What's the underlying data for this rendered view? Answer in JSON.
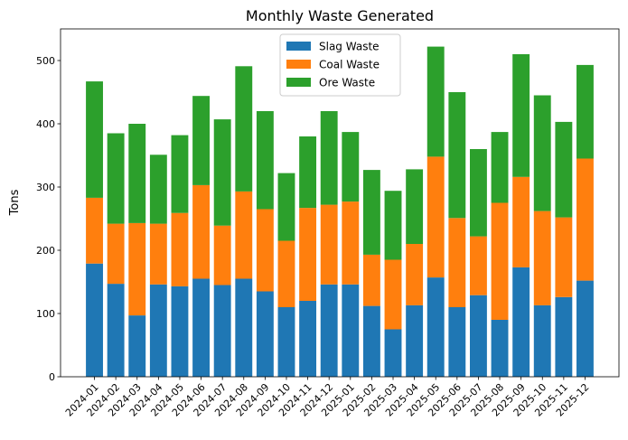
{
  "chart_data": {
    "type": "bar",
    "stacked": true,
    "title": "Monthly Waste Generated",
    "xlabel": "",
    "ylabel": "Tons",
    "ylim": [
      0,
      550
    ],
    "yticks": [
      0,
      100,
      200,
      300,
      400,
      500
    ],
    "legend_position": "top-center",
    "grid": false,
    "categories": [
      "2024-01",
      "2024-02",
      "2024-03",
      "2024-04",
      "2024-05",
      "2024-06",
      "2024-07",
      "2024-08",
      "2024-09",
      "2024-10",
      "2024-11",
      "2024-12",
      "2025-01",
      "2025-02",
      "2025-03",
      "2025-04",
      "2025-05",
      "2025-06",
      "2025-07",
      "2025-08",
      "2025-09",
      "2025-10",
      "2025-11",
      "2025-12"
    ],
    "series": [
      {
        "name": "Slag Waste",
        "color": "#1f77b4",
        "values": [
          179,
          147,
          97,
          146,
          143,
          155,
          145,
          155,
          135,
          110,
          120,
          146,
          146,
          112,
          75,
          113,
          157,
          110,
          129,
          90,
          173,
          113,
          126,
          152
        ]
      },
      {
        "name": "Coal Waste",
        "color": "#ff7f0e",
        "values": [
          104,
          95,
          146,
          96,
          116,
          148,
          94,
          138,
          130,
          105,
          147,
          126,
          131,
          81,
          110,
          97,
          191,
          141,
          93,
          185,
          143,
          149,
          126,
          193
        ]
      },
      {
        "name": "Ore Waste",
        "color": "#2ca02c",
        "values": [
          184,
          143,
          157,
          109,
          123,
          141,
          168,
          198,
          155,
          107,
          113,
          148,
          110,
          134,
          109,
          118,
          174,
          199,
          138,
          112,
          194,
          183,
          151,
          148
        ]
      }
    ]
  }
}
